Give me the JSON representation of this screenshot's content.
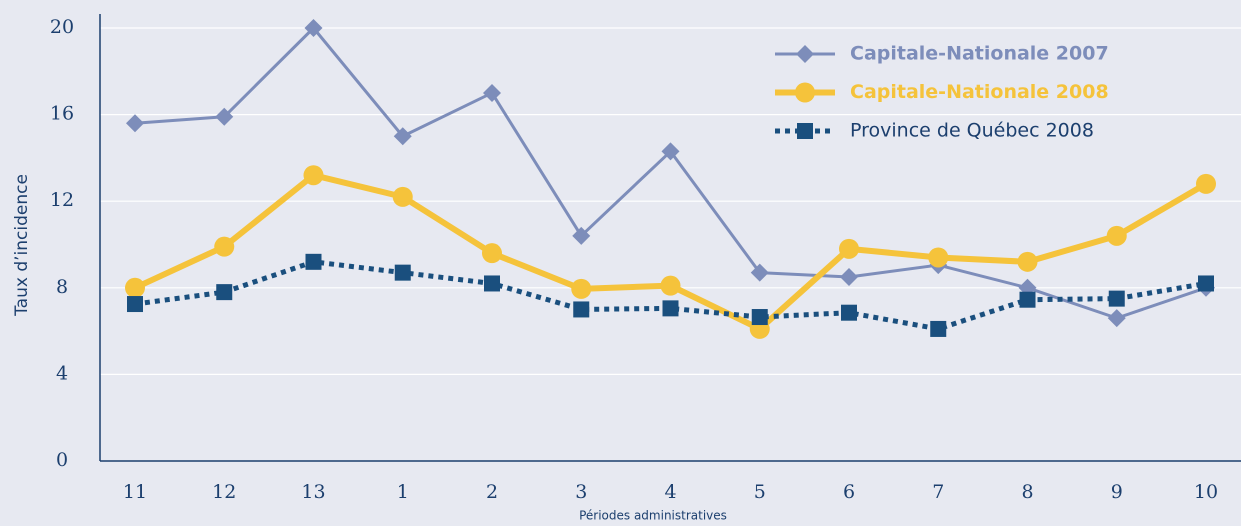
{
  "chart_data": {
    "type": "line",
    "x_label": "Périodes administratives",
    "y_label": "Taux d’incidence",
    "categories": [
      "11",
      "12",
      "13",
      "1",
      "2",
      "3",
      "4",
      "5",
      "6",
      "7",
      "8",
      "9",
      "10"
    ],
    "series": [
      {
        "name": "Capitale-Nationale 2007",
        "color": "#7d8dba",
        "marker": "diamond",
        "dash": "solid",
        "bold": true,
        "values": [
          15.6,
          15.9,
          20,
          15.0,
          17.0,
          10.4,
          14.3,
          8.7,
          8.5,
          9.05,
          8.0,
          6.6,
          8.0
        ]
      },
      {
        "name": "Capitale-Nationale 2008",
        "color": "#f5c33b",
        "marker": "circle",
        "dash": "solid",
        "bold": true,
        "values": [
          8.0,
          9.9,
          13.2,
          12.2,
          9.6,
          7.95,
          8.1,
          6.1,
          9.8,
          9.4,
          9.2,
          10.4,
          12.8
        ]
      },
      {
        "name": "Province de Québec 2008",
        "color": "#1a4f7e",
        "marker": "square",
        "dash": "dotted",
        "bold": false,
        "values": [
          7.25,
          7.8,
          9.2,
          8.7,
          8.2,
          7.0,
          7.05,
          6.65,
          6.85,
          6.1,
          7.45,
          7.5,
          8.2
        ]
      }
    ],
    "ylim": [
      0,
      20
    ],
    "yticks": [
      0,
      4,
      8,
      12,
      16,
      20
    ],
    "grid": true,
    "legend": "top-right"
  }
}
